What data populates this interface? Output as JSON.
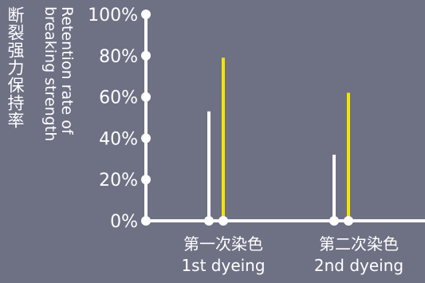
{
  "chart_data": {
    "type": "bar",
    "ylabel_zh": "断裂强力保持率",
    "ylabel_en": "Retention rate of\nbreaking strength",
    "yticks": [
      "0%",
      "20%",
      "40%",
      "60%",
      "80%",
      "100%"
    ],
    "ylim": [
      0,
      100
    ],
    "categories": [
      {
        "zh": "第一次染色",
        "en": "1st dyeing"
      },
      {
        "zh": "第二次染色",
        "en": "2nd dyeing"
      }
    ],
    "series": [
      {
        "color": "#ffffff",
        "values": [
          53,
          32
        ]
      },
      {
        "color": "#f2e600",
        "values": [
          79,
          62
        ]
      }
    ],
    "legend": "none",
    "grid": false
  }
}
